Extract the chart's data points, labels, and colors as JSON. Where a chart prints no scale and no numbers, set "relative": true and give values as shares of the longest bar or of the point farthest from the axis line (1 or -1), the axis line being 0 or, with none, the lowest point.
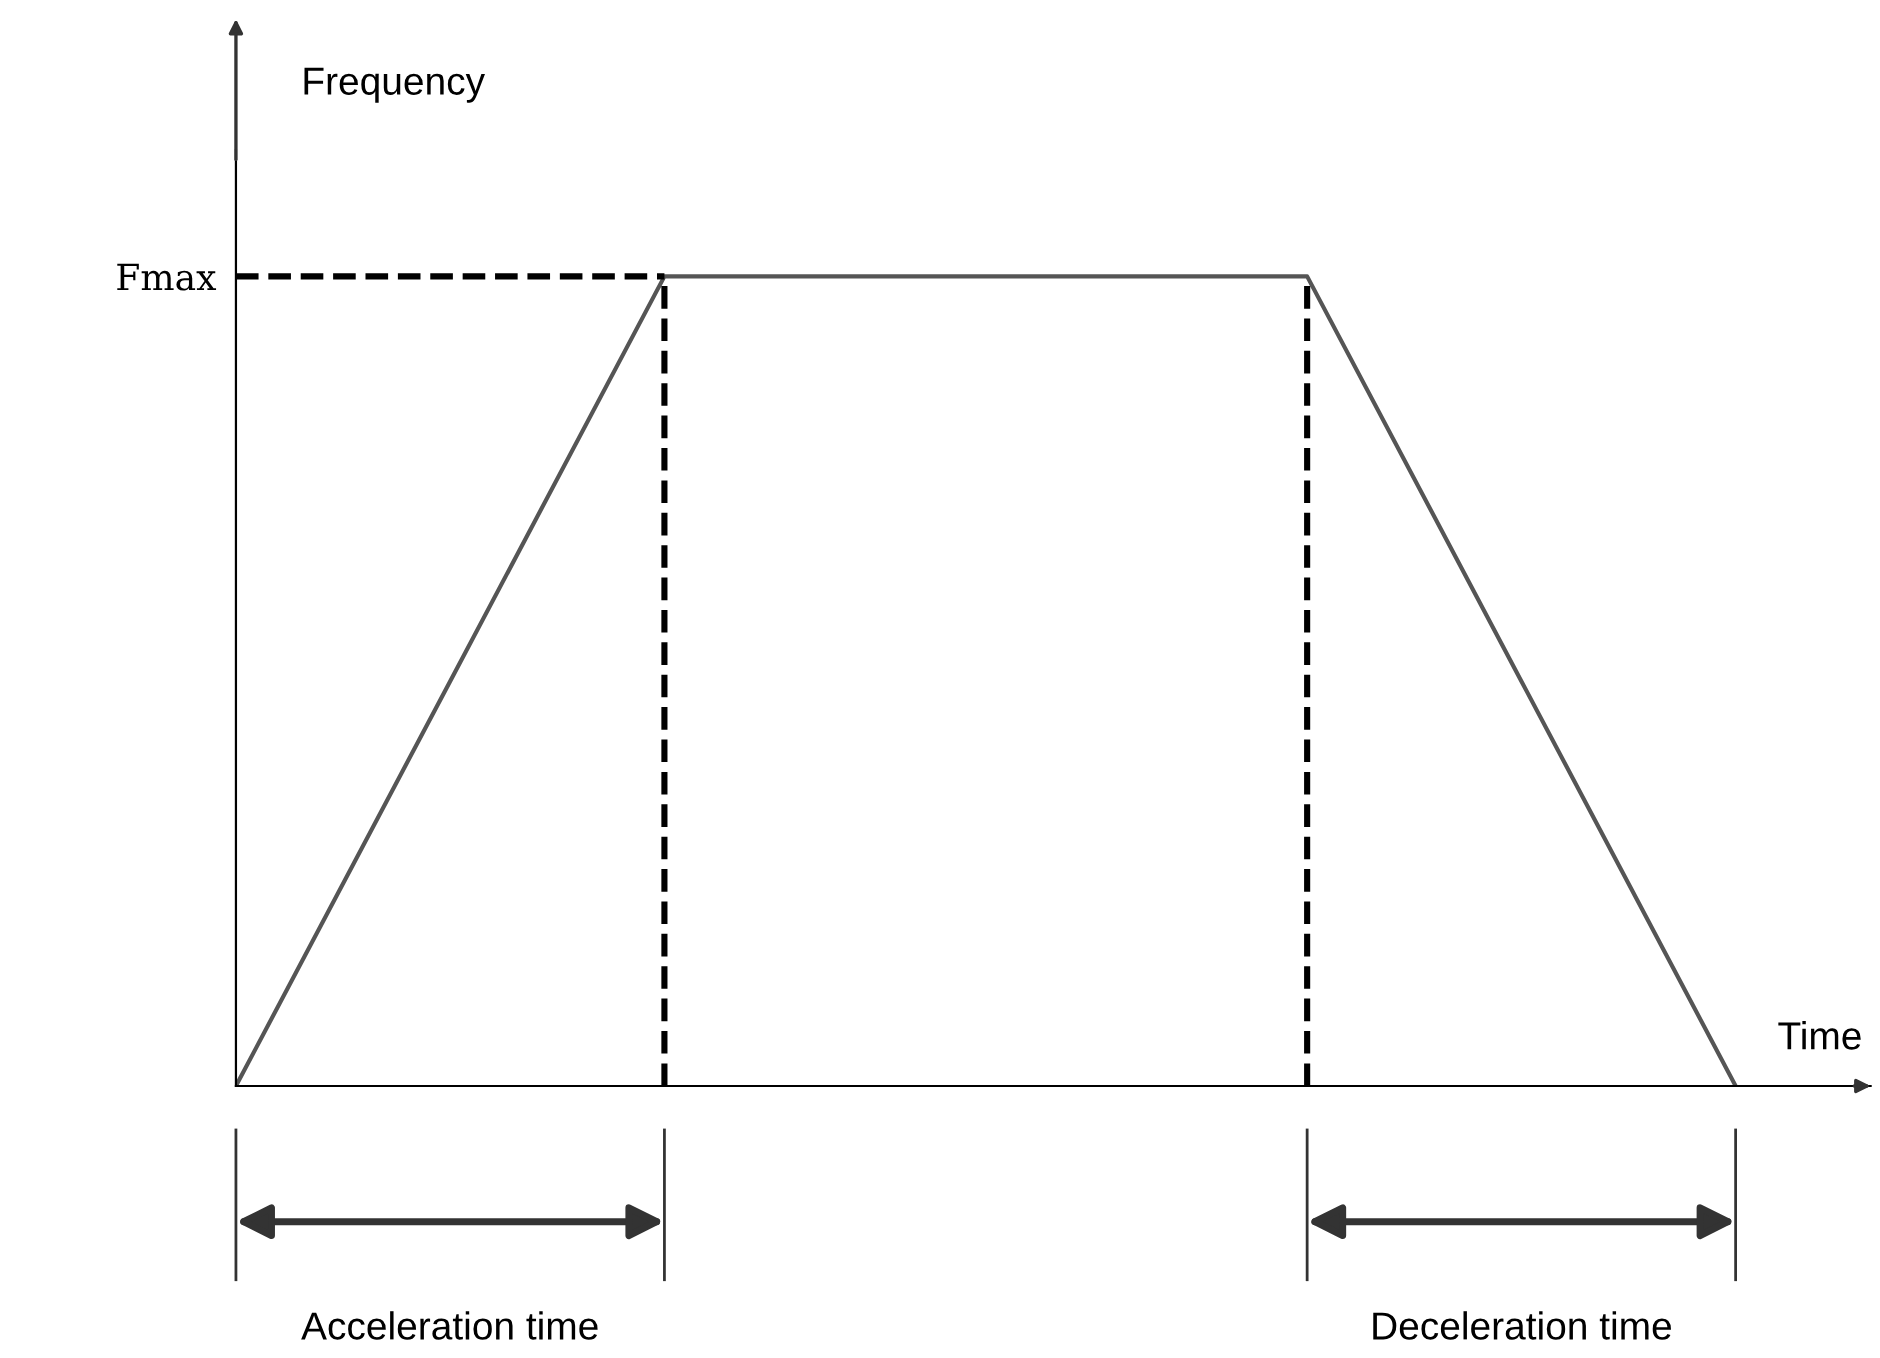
{
  "chart_data": {
    "type": "line",
    "relative": true,
    "xlabel": "Time",
    "ylabel": "Frequency",
    "categories": [
      null,
      null,
      null,
      null,
      null,
      null,
      null,
      null
    ],
    "series": [
      {
        "color": "#555555",
        "values": [
          0,
          0.5,
          1,
          1,
          1,
          1,
          0.5,
          0
        ]
      }
    ],
    "ref_lines": [
      {
        "axis": "y",
        "value": 1,
        "label": "Fmax",
        "line_style": "dashed",
        "color": "#000000"
      }
    ],
    "annotations": [
      "Acceleration time",
      "Deceleration time"
    ],
    "grid": false,
    "legend": false,
    "marker": "none",
    "line_style": "solid"
  }
}
